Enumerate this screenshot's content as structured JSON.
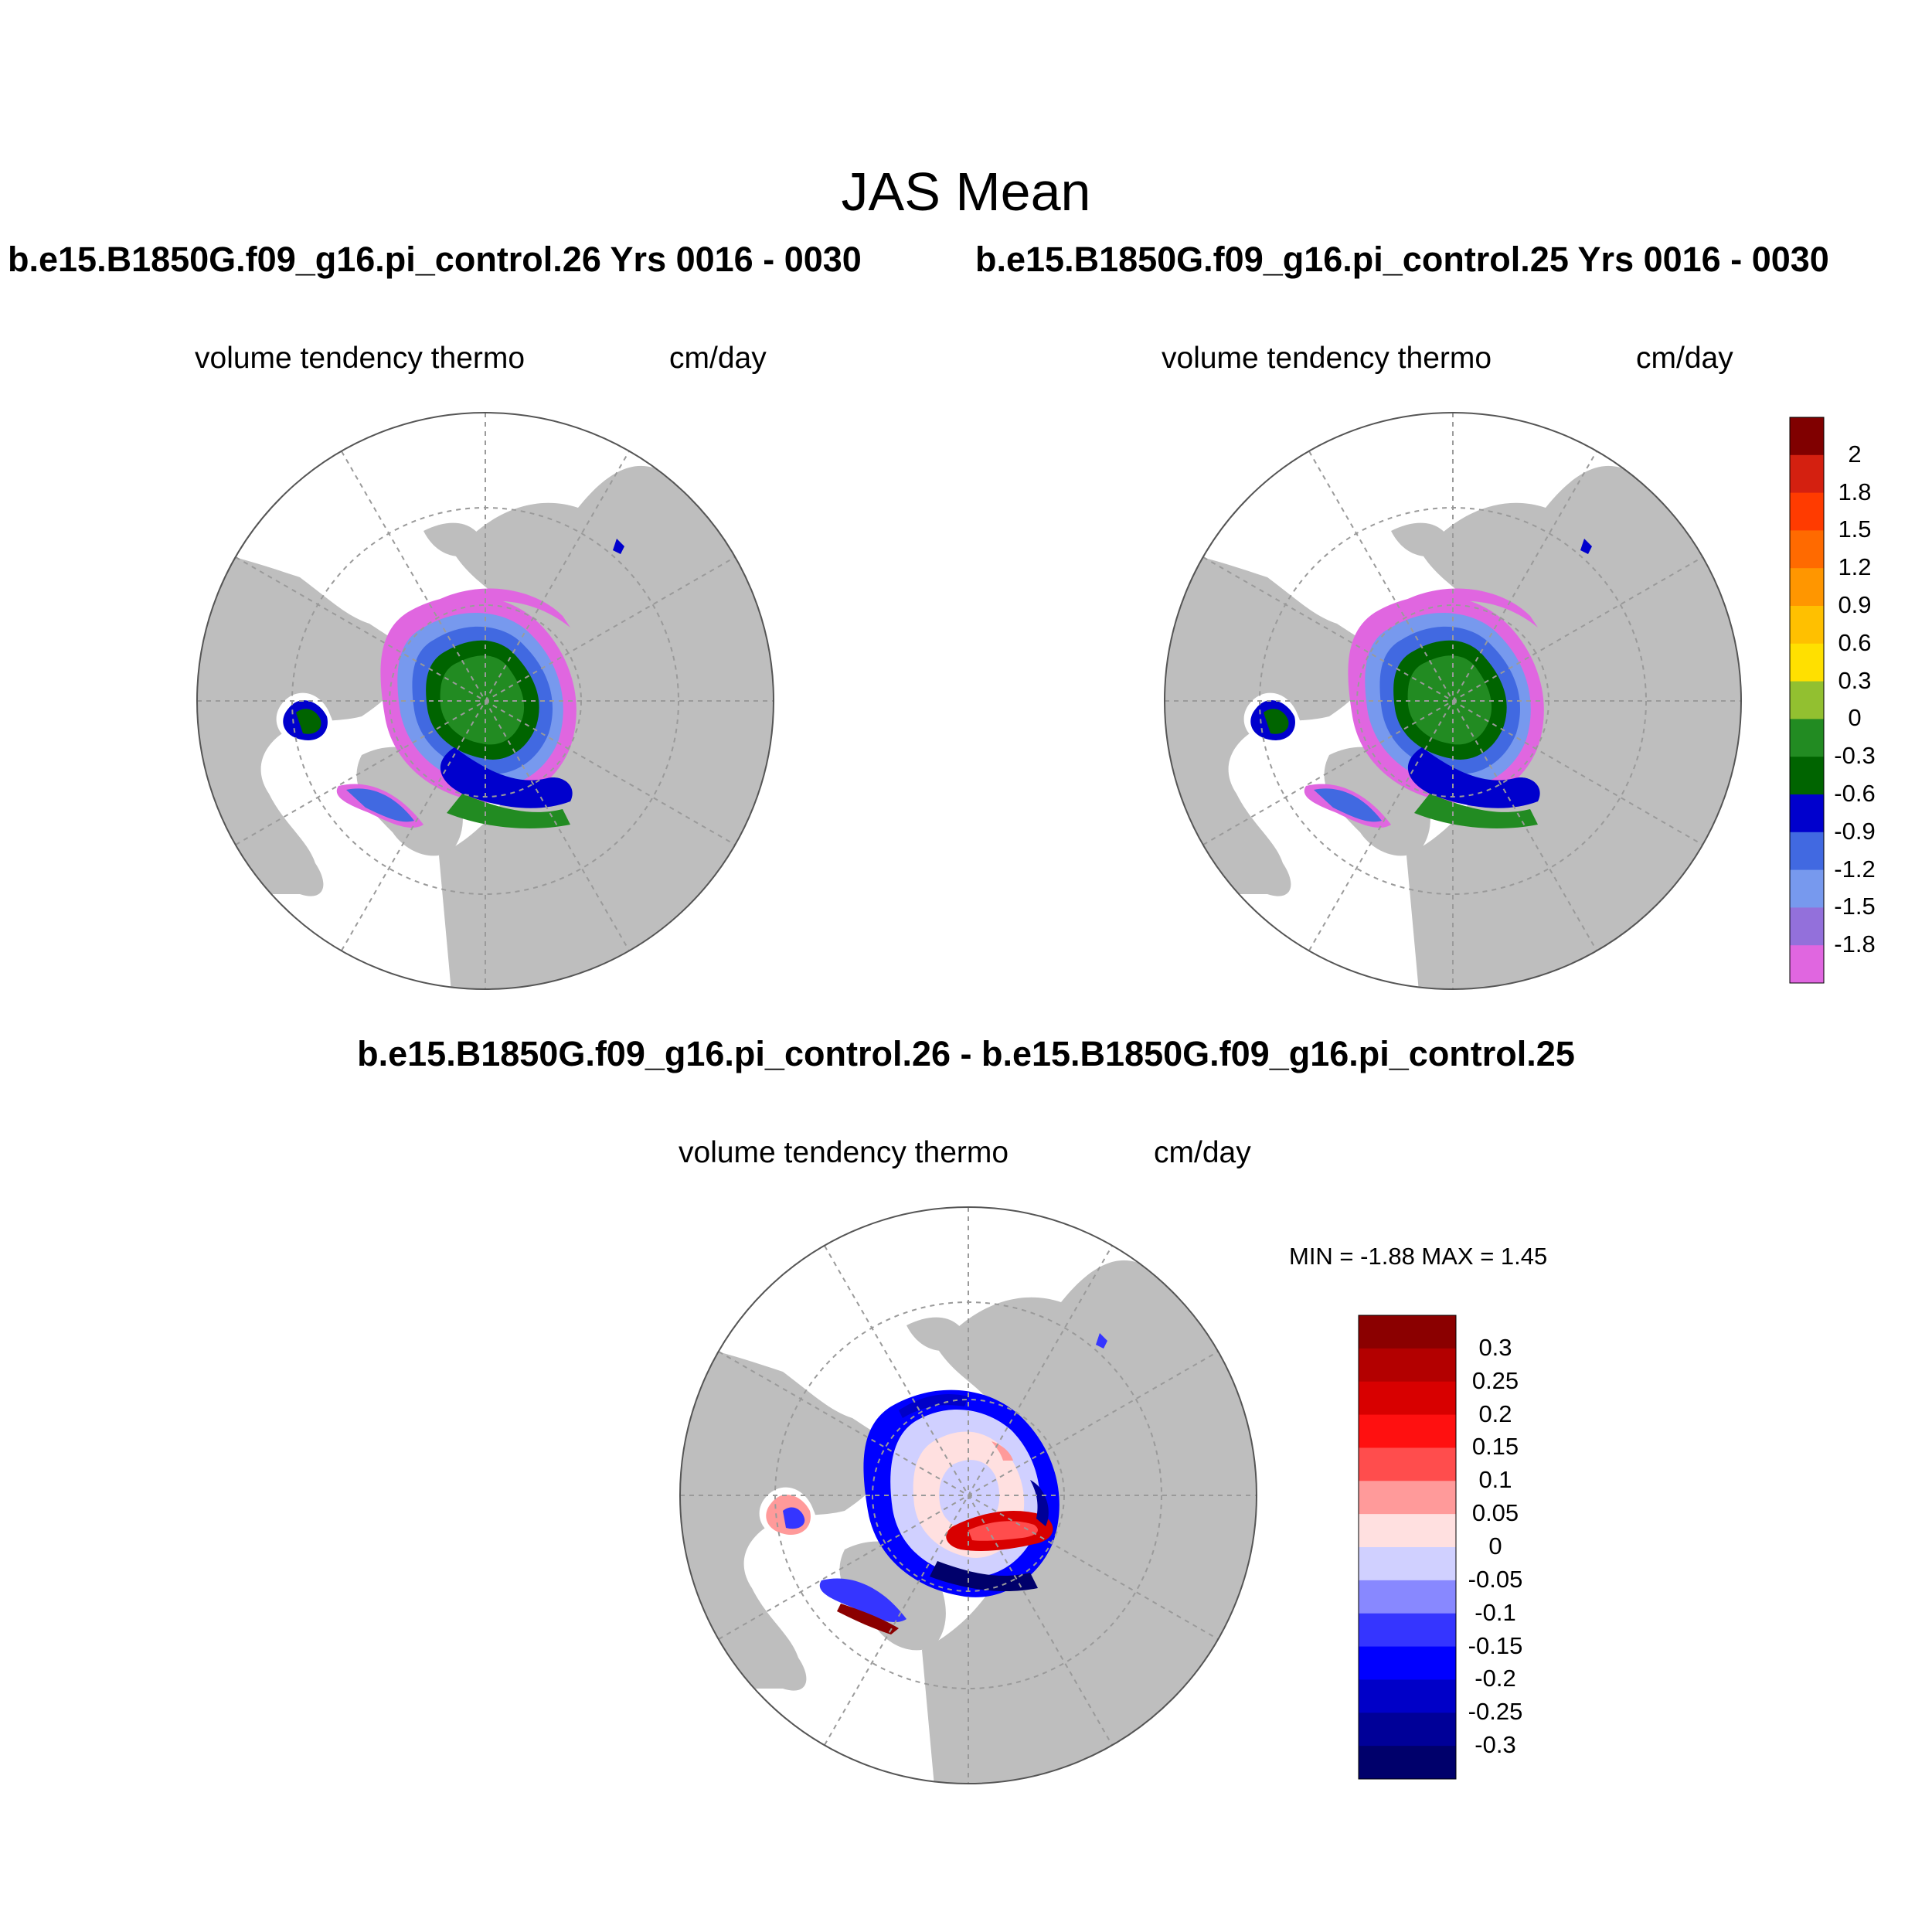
{
  "figure": {
    "title": "JAS Mean",
    "case_left": "b.e15.B1850G.f09_g16.pi_control.26  Yrs 0016 - 0030",
    "case_right": "b.e15.B1850G.f09_g16.pi_control.25  Yrs 0016 - 0030",
    "diff_title": "b.e15.B1850G.f09_g16.pi_control.26 - b.e15.B1850G.f09_g16.pi_control.25"
  },
  "panels": {
    "left": {
      "variable": "volume tendency thermo",
      "units": "cm/day"
    },
    "right": {
      "variable": "volume tendency thermo",
      "units": "cm/day"
    },
    "diff": {
      "variable": "volume tendency thermo",
      "units": "cm/day",
      "min_max": "MIN =  -1.88 MAX =   1.45"
    }
  },
  "colorbars": {
    "main": {
      "labels": [
        "2",
        "1.8",
        "1.5",
        "1.2",
        "0.9",
        "0.6",
        "0.3",
        "0",
        "-0.3",
        "-0.6",
        "-0.9",
        "-1.2",
        "-1.5",
        "-1.8"
      ],
      "colors": [
        "#800000",
        "#d42010",
        "#ff3b00",
        "#ff6a00",
        "#ff9600",
        "#ffc000",
        "#ffe000",
        "#92c030",
        "#228b22",
        "#006400",
        "#0000cd",
        "#4169e1",
        "#7799ee",
        "#9370db",
        "#e066e0"
      ]
    },
    "diff": {
      "labels": [
        "0.3",
        "0.25",
        "0.2",
        "0.15",
        "0.1",
        "0.05",
        "0",
        "-0.05",
        "-0.1",
        "-0.15",
        "-0.2",
        "-0.25",
        "-0.3"
      ],
      "colors": [
        "#8b0000",
        "#b30000",
        "#d80000",
        "#ff1010",
        "#ff4d4d",
        "#ff9a9a",
        "#ffe0e0",
        "#d0d0ff",
        "#8888ff",
        "#3535ff",
        "#0000ff",
        "#0000c8",
        "#000098",
        "#00006b"
      ]
    }
  }
}
